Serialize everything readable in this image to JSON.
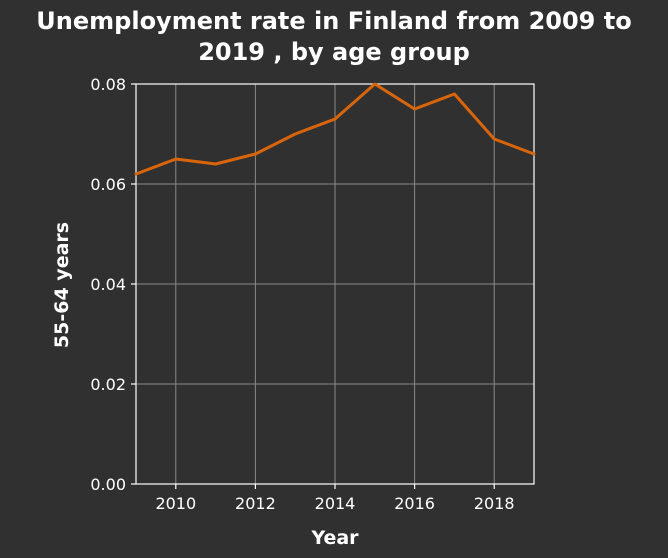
{
  "chart_data": {
    "type": "line",
    "title_lines": [
      "Unemployment rate in Finland from 2009 to",
      "2019 , by age group"
    ],
    "xlabel": "Year",
    "ylabel": "55-64 years",
    "xlim": [
      2009,
      2019
    ],
    "ylim": [
      0,
      0.08
    ],
    "x_ticks": [
      2010,
      2012,
      2014,
      2016,
      2018
    ],
    "x_tick_labels": [
      "2010",
      "2012",
      "2014",
      "2016",
      "2018"
    ],
    "y_ticks": [
      0,
      0.02,
      0.04,
      0.06,
      0.08
    ],
    "y_tick_labels": [
      "0.00",
      "0.02",
      "0.04",
      "0.06",
      "0.08"
    ],
    "grid": true,
    "series": [
      {
        "color": "#d9650b",
        "x": [
          2009,
          2010,
          2011,
          2012,
          2013,
          2014,
          2015,
          2016,
          2017,
          2018,
          2019
        ],
        "y": [
          0.062,
          0.065,
          0.064,
          0.066,
          0.07,
          0.073,
          0.08,
          0.075,
          0.078,
          0.069,
          0.066
        ]
      }
    ]
  }
}
